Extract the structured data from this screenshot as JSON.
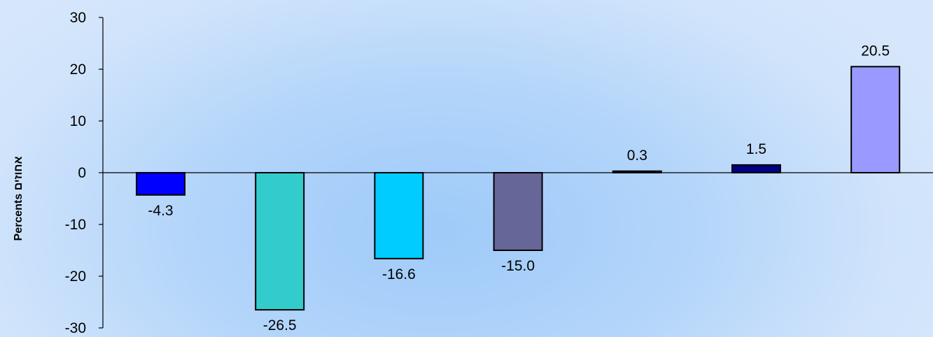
{
  "chart_data": {
    "type": "bar",
    "title": "",
    "xlabel": "",
    "ylabel": "Percents אחוזים",
    "ylim": [
      -30,
      30
    ],
    "yticks": [
      30,
      20,
      10,
      0,
      -10,
      -20,
      -30
    ],
    "grid": false,
    "legend": "none",
    "values": [
      -4.3,
      -26.5,
      -16.6,
      -15.0,
      0.3,
      1.5,
      20.5
    ],
    "data_labels": [
      "-4.3",
      "-26.5",
      "-16.6",
      "-15.0",
      "0.3",
      "1.5",
      "20.5"
    ],
    "colors": [
      "#0000ff",
      "#33cccc",
      "#00ccff",
      "#666699",
      "#000080",
      "#000080",
      "#9999ff"
    ]
  }
}
